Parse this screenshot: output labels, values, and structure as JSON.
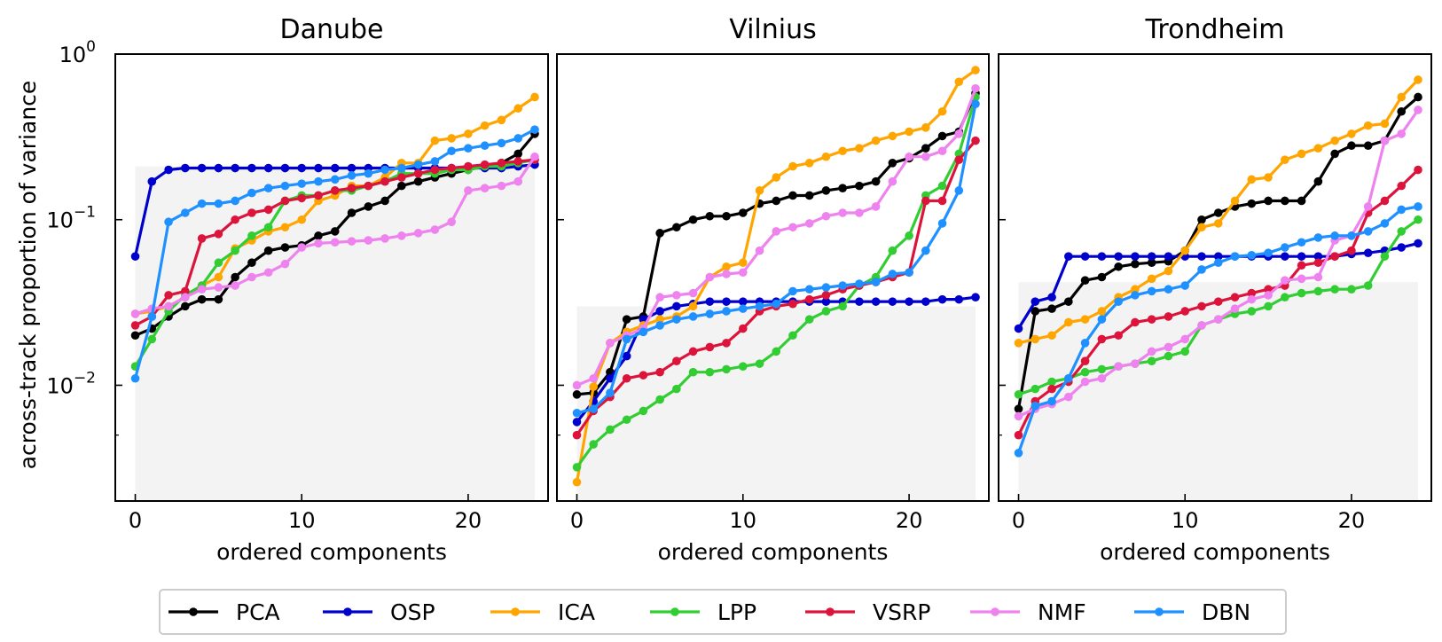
{
  "chart_data": {
    "type": "line",
    "ylabel": "across-track proportion of variance",
    "yscale": "log",
    "ylim": [
      0.002,
      1.0
    ],
    "xlim": [
      -1.2,
      24.8
    ],
    "x_ticks": [
      0,
      10,
      20
    ],
    "y_ticks": [
      {
        "value": 0.01,
        "base": "10",
        "exp": "−2"
      },
      {
        "value": 0.1,
        "base": "10",
        "exp": "−1"
      },
      {
        "value": 1.0,
        "base": "10",
        "exp": "0"
      }
    ],
    "colors": {
      "PCA": "#000000",
      "OSP": "#0000cd",
      "ICA": "#ffa500",
      "LPP": "#32cd32",
      "VSRP": "#dc143c",
      "NMF": "#ee82ee",
      "DBN": "#1e90ff"
    },
    "legend": [
      "PCA",
      "OSP",
      "ICA",
      "LPP",
      "VSRP",
      "NMF",
      "DBN"
    ],
    "legend_position": "bottom-center",
    "panels": [
      {
        "title": "Danube",
        "xlabel": "ordered components",
        "shade_top": 0.21,
        "series": [
          {
            "name": "PCA",
            "values": [
              0.02,
              0.022,
              0.026,
              0.03,
              0.033,
              0.033,
              0.045,
              0.055,
              0.065,
              0.068,
              0.07,
              0.08,
              0.085,
              0.11,
              0.12,
              0.13,
              0.16,
              0.17,
              0.18,
              0.19,
              0.2,
              0.21,
              0.22,
              0.25,
              0.33
            ]
          },
          {
            "name": "OSP",
            "values": [
              0.06,
              0.17,
              0.2,
              0.205,
              0.205,
              0.205,
              0.205,
              0.205,
              0.205,
              0.205,
              0.205,
              0.205,
              0.205,
              0.205,
              0.205,
              0.205,
              0.205,
              0.205,
              0.205,
              0.205,
              0.205,
              0.205,
              0.205,
              0.21,
              0.215
            ]
          },
          {
            "name": "ICA",
            "values": [
              0.027,
              0.028,
              0.03,
              0.034,
              0.04,
              0.045,
              0.067,
              0.075,
              0.085,
              0.09,
              0.1,
              0.13,
              0.14,
              0.16,
              0.16,
              0.18,
              0.22,
              0.22,
              0.3,
              0.31,
              0.33,
              0.37,
              0.4,
              0.47,
              0.55
            ]
          },
          {
            "name": "LPP",
            "values": [
              0.013,
              0.019,
              0.028,
              0.035,
              0.04,
              0.055,
              0.065,
              0.08,
              0.09,
              0.13,
              0.14,
              0.14,
              0.15,
              0.15,
              0.16,
              0.17,
              0.19,
              0.19,
              0.19,
              0.2,
              0.2,
              0.21,
              0.21,
              0.22,
              0.23
            ]
          },
          {
            "name": "VSRP",
            "values": [
              0.023,
              0.026,
              0.035,
              0.037,
              0.077,
              0.082,
              0.1,
              0.11,
              0.115,
              0.13,
              0.135,
              0.14,
              0.15,
              0.155,
              0.16,
              0.17,
              0.18,
              0.19,
              0.2,
              0.205,
              0.21,
              0.215,
              0.22,
              0.225,
              0.23
            ]
          },
          {
            "name": "NMF",
            "values": [
              0.027,
              0.029,
              0.03,
              0.034,
              0.038,
              0.039,
              0.04,
              0.045,
              0.048,
              0.054,
              0.068,
              0.072,
              0.073,
              0.074,
              0.075,
              0.077,
              0.08,
              0.083,
              0.087,
              0.097,
              0.15,
              0.155,
              0.16,
              0.17,
              0.24
            ]
          },
          {
            "name": "DBN",
            "values": [
              0.011,
              0.026,
              0.097,
              0.11,
              0.125,
              0.125,
              0.13,
              0.145,
              0.155,
              0.16,
              0.165,
              0.17,
              0.175,
              0.185,
              0.19,
              0.2,
              0.205,
              0.215,
              0.225,
              0.26,
              0.27,
              0.28,
              0.29,
              0.31,
              0.35
            ]
          }
        ]
      },
      {
        "title": "Vilnius",
        "xlabel": "ordered components",
        "shade_top": 0.03,
        "series": [
          {
            "name": "PCA",
            "values": [
              0.0088,
              0.009,
              0.012,
              0.025,
              0.026,
              0.083,
              0.09,
              0.1,
              0.105,
              0.105,
              0.11,
              0.125,
              0.13,
              0.14,
              0.14,
              0.15,
              0.155,
              0.16,
              0.17,
              0.22,
              0.235,
              0.27,
              0.32,
              0.34,
              0.58
            ]
          },
          {
            "name": "OSP",
            "values": [
              0.006,
              0.008,
              0.011,
              0.015,
              0.025,
              0.028,
              0.03,
              0.031,
              0.032,
              0.032,
              0.032,
              0.032,
              0.032,
              0.032,
              0.032,
              0.032,
              0.032,
              0.032,
              0.032,
              0.032,
              0.032,
              0.032,
              0.033,
              0.033,
              0.034
            ]
          },
          {
            "name": "ICA",
            "values": [
              0.0026,
              0.0098,
              0.018,
              0.021,
              0.023,
              0.025,
              0.026,
              0.03,
              0.045,
              0.052,
              0.055,
              0.15,
              0.18,
              0.21,
              0.22,
              0.24,
              0.26,
              0.27,
              0.3,
              0.32,
              0.34,
              0.36,
              0.45,
              0.68,
              0.8
            ]
          },
          {
            "name": "LPP",
            "values": [
              0.0032,
              0.0044,
              0.0054,
              0.0062,
              0.007,
              0.0082,
              0.0095,
              0.012,
              0.012,
              0.0125,
              0.013,
              0.0135,
              0.016,
              0.02,
              0.025,
              0.028,
              0.03,
              0.04,
              0.045,
              0.065,
              0.08,
              0.14,
              0.16,
              0.25,
              0.55
            ]
          },
          {
            "name": "VSRP",
            "values": [
              0.005,
              0.007,
              0.0085,
              0.011,
              0.0115,
              0.012,
              0.014,
              0.016,
              0.017,
              0.018,
              0.022,
              0.028,
              0.03,
              0.031,
              0.033,
              0.035,
              0.038,
              0.04,
              0.042,
              0.045,
              0.048,
              0.13,
              0.13,
              0.23,
              0.3
            ]
          },
          {
            "name": "NMF",
            "values": [
              0.01,
              0.011,
              0.018,
              0.02,
              0.022,
              0.034,
              0.035,
              0.036,
              0.045,
              0.047,
              0.048,
              0.065,
              0.085,
              0.09,
              0.095,
              0.105,
              0.11,
              0.11,
              0.12,
              0.17,
              0.24,
              0.24,
              0.26,
              0.33,
              0.62
            ]
          },
          {
            "name": "DBN",
            "values": [
              0.0068,
              0.0072,
              0.009,
              0.019,
              0.021,
              0.023,
              0.025,
              0.026,
              0.027,
              0.028,
              0.029,
              0.03,
              0.031,
              0.037,
              0.038,
              0.039,
              0.04,
              0.041,
              0.042,
              0.047,
              0.048,
              0.065,
              0.095,
              0.15,
              0.5
            ]
          }
        ]
      },
      {
        "title": "Trondheim",
        "xlabel": "ordered components",
        "shade_top": 0.042,
        "series": [
          {
            "name": "PCA",
            "values": [
              0.0072,
              0.028,
              0.029,
              0.032,
              0.043,
              0.045,
              0.052,
              0.054,
              0.055,
              0.056,
              0.065,
              0.1,
              0.11,
              0.12,
              0.125,
              0.13,
              0.13,
              0.13,
              0.17,
              0.25,
              0.28,
              0.28,
              0.3,
              0.45,
              0.55
            ]
          },
          {
            "name": "OSP",
            "values": [
              0.022,
              0.032,
              0.034,
              0.06,
              0.06,
              0.06,
              0.06,
              0.06,
              0.06,
              0.06,
              0.06,
              0.06,
              0.06,
              0.06,
              0.06,
              0.06,
              0.06,
              0.06,
              0.06,
              0.06,
              0.062,
              0.063,
              0.065,
              0.068,
              0.072
            ]
          },
          {
            "name": "ICA",
            "values": [
              0.018,
              0.019,
              0.02,
              0.024,
              0.025,
              0.028,
              0.034,
              0.038,
              0.044,
              0.049,
              0.065,
              0.09,
              0.095,
              0.13,
              0.175,
              0.18,
              0.23,
              0.25,
              0.27,
              0.3,
              0.33,
              0.37,
              0.38,
              0.55,
              0.7
            ]
          },
          {
            "name": "LPP",
            "values": [
              0.0088,
              0.0095,
              0.0105,
              0.011,
              0.012,
              0.0125,
              0.013,
              0.0135,
              0.014,
              0.015,
              0.016,
              0.023,
              0.025,
              0.027,
              0.028,
              0.03,
              0.034,
              0.036,
              0.037,
              0.038,
              0.038,
              0.04,
              0.06,
              0.085,
              0.1
            ]
          },
          {
            "name": "VSRP",
            "values": [
              0.005,
              0.008,
              0.0095,
              0.0105,
              0.014,
              0.019,
              0.02,
              0.024,
              0.025,
              0.026,
              0.028,
              0.03,
              0.032,
              0.034,
              0.036,
              0.038,
              0.04,
              0.053,
              0.055,
              0.06,
              0.065,
              0.11,
              0.13,
              0.16,
              0.2
            ]
          },
          {
            "name": "NMF",
            "values": [
              0.0065,
              0.0072,
              0.0077,
              0.0085,
              0.0105,
              0.011,
              0.013,
              0.0135,
              0.016,
              0.017,
              0.019,
              0.023,
              0.025,
              0.029,
              0.033,
              0.035,
              0.043,
              0.044,
              0.045,
              0.075,
              0.08,
              0.12,
              0.3,
              0.33,
              0.46
            ]
          },
          {
            "name": "DBN",
            "values": [
              0.0039,
              0.0075,
              0.008,
              0.011,
              0.018,
              0.025,
              0.032,
              0.035,
              0.037,
              0.038,
              0.04,
              0.05,
              0.055,
              0.06,
              0.061,
              0.063,
              0.068,
              0.073,
              0.078,
              0.08,
              0.08,
              0.085,
              0.095,
              0.115,
              0.12
            ]
          }
        ]
      }
    ]
  }
}
